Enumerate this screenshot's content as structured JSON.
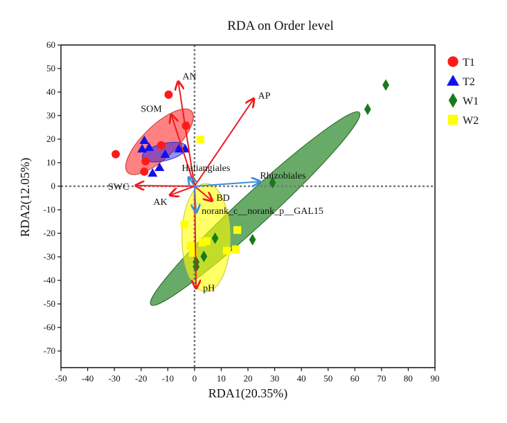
{
  "chart_data": {
    "type": "scatter",
    "title": "RDA on Order level",
    "xlabel": "RDA1(20.35%)",
    "ylabel": "RDA2(12.05%)",
    "xlim": [
      -50,
      90
    ],
    "ylim": [
      -70,
      60
    ],
    "xticks": [
      -50,
      -40,
      -30,
      -20,
      -10,
      0,
      10,
      20,
      30,
      40,
      50,
      60,
      70,
      80,
      90
    ],
    "yticks": [
      60,
      50,
      40,
      30,
      20,
      10,
      0,
      -10,
      -20,
      -30,
      -40,
      -50,
      -60,
      -70
    ],
    "grid": false,
    "legend_position": "right",
    "colors": {
      "T1": "#ff1a1a",
      "T2": "#1010ee",
      "W1": "#1a7a1a",
      "W2": "#ffff00",
      "env_arrow": "#ee1c1c",
      "taxon_arrow": "#3a8fe0",
      "origin_lines": "#777777"
    },
    "series": [
      {
        "name": "T1",
        "marker": "circle",
        "points": [
          [
            -9.7,
            38.9
          ],
          [
            -3.2,
            25.7
          ],
          [
            -29.5,
            13.6
          ],
          [
            -12.5,
            17.4
          ],
          [
            -18.3,
            10.6
          ],
          [
            -18.8,
            6.2
          ]
        ],
        "ellipse": {
          "center": [
            -13.1,
            18.9
          ],
          "semi_axes": [
            17.7,
            6.5
          ],
          "angle_deg": 48.7
        }
      },
      {
        "name": "T2",
        "marker": "triangle",
        "points": [
          [
            -18.8,
            19.5
          ],
          [
            -17,
            16.5
          ],
          [
            -19.6,
            15.9
          ],
          [
            -11,
            13.6
          ],
          [
            -5.8,
            15.9
          ],
          [
            -3.5,
            15.9
          ],
          [
            -13.1,
            8
          ],
          [
            -15.7,
            5.6
          ]
        ],
        "ellipse": {
          "center": [
            -11.3,
            14.5
          ],
          "semi_axes": [
            8.5,
            3.6
          ],
          "angle_deg": 16
        }
      },
      {
        "name": "W1",
        "marker": "diamond",
        "points": [
          [
            71.6,
            43
          ],
          [
            64.8,
            32.7
          ],
          [
            29.2,
            1.5
          ],
          [
            21.7,
            -22.7
          ],
          [
            7.7,
            -22.1
          ],
          [
            3.5,
            -29.8
          ],
          [
            0.6,
            -32.2
          ],
          [
            0.6,
            -34.2
          ]
        ],
        "ellipse": {
          "center": [
            22.7,
            -9.5
          ],
          "semi_axes": [
            56.5,
            6.2
          ],
          "angle_deg": 46.4
        }
      },
      {
        "name": "W2",
        "marker": "square",
        "points": [
          [
            2.2,
            19.8
          ],
          [
            -3.8,
            -16.2
          ],
          [
            16,
            -18.6
          ],
          [
            15.5,
            -26.8
          ],
          [
            12.1,
            -27.4
          ],
          [
            4.5,
            -23.3
          ],
          [
            3,
            -23.9
          ],
          [
            -1.4,
            -25.4
          ],
          [
            -0.6,
            -28.3
          ]
        ],
        "ellipse": {
          "center": [
            4.3,
            -21.8
          ],
          "semi_axes": [
            9,
            23
          ],
          "angle_deg": 0
        }
      }
    ],
    "env_arrows": [
      {
        "label": "AN",
        "end": [
          -6.1,
          44.5
        ]
      },
      {
        "label": "AP",
        "end": [
          22.2,
          37.2
        ]
      },
      {
        "label": "SOM",
        "end": [
          -8.7,
          30.4
        ]
      },
      {
        "label": "SWC",
        "end": [
          -22,
          0.3
        ]
      },
      {
        "label": "AK",
        "end": [
          -9.2,
          -3.8
        ]
      },
      {
        "label": "BD",
        "end": [
          6.6,
          -6.2
        ]
      },
      {
        "label": "pH",
        "end": [
          0.6,
          -43.4
        ]
      }
    ],
    "taxon_arrows": [
      {
        "label": "Rhizobiales",
        "end": [
          24.5,
          2
        ]
      },
      {
        "label": "Haliangiales",
        "end": [
          -2.2,
          3.8
        ]
      },
      {
        "label": "norank_c__norank_p__GAL15",
        "end": [
          0.6,
          -11.2
        ]
      }
    ]
  }
}
